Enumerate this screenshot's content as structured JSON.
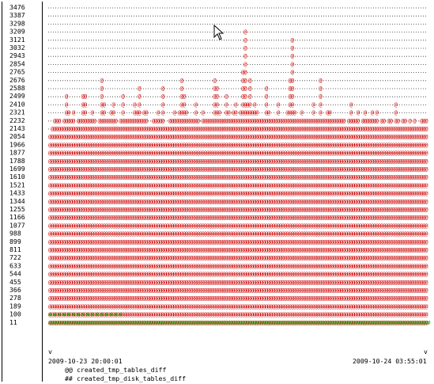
{
  "chart_data": {
    "type": "area",
    "title": "",
    "xlabel": "",
    "ylabel": "",
    "y_ticks": [
      3476,
      3387,
      3298,
      3209,
      3121,
      3032,
      2943,
      2854,
      2765,
      2676,
      2588,
      2499,
      2410,
      2321,
      2232,
      2143,
      2054,
      1966,
      1877,
      1788,
      1699,
      1610,
      1521,
      1433,
      1344,
      1255,
      1166,
      1077,
      988,
      899,
      811,
      722,
      633,
      544,
      455,
      366,
      278,
      189,
      100,
      11
    ],
    "x_start": "2009-10-23 20:00:01",
    "x_end": "2009-10-24 03:55:01",
    "ylim": [
      11,
      3476
    ],
    "series": [
      {
        "name": "created_tmp_tables_diff",
        "glyph": "@@",
        "color": "#cc0000",
        "values": [
          2100,
          2150,
          2250,
          2300,
          2250,
          2150,
          2300,
          2550,
          2350,
          2250,
          2350,
          2200,
          2300,
          2300,
          2500,
          2550,
          2300,
          2250,
          2400,
          2250,
          2150,
          2250,
          2700,
          2450,
          2250,
          2300,
          2350,
          2450,
          2300,
          2150,
          2250,
          2500,
          2250,
          2250,
          2300,
          2250,
          2450,
          2400,
          2650,
          2250,
          2400,
          2350,
          2200,
          2150,
          2300,
          2250,
          2350,
          2250,
          2600,
          2200,
          2150,
          2250,
          2300,
          2400,
          2250,
          2350,
          2700,
          2550,
          2350,
          2250,
          2250,
          2300,
          2450,
          2250,
          2200,
          2350,
          2300,
          2250,
          2250,
          2300,
          2750,
          2600,
          2400,
          2250,
          2300,
          2500,
          2400,
          2300,
          2350,
          2450,
          2300,
          2350,
          2850,
          3250,
          2450,
          2750,
          2400,
          2450,
          2350,
          2250,
          2250,
          2300,
          2650,
          2400,
          2300,
          2250,
          2300,
          2450,
          2250,
          2250,
          2250,
          2350,
          2750,
          3200,
          2350,
          2250,
          2300,
          2350,
          2250,
          2250,
          2250,
          2300,
          2450,
          2250,
          2250,
          2700,
          2300,
          2250,
          2400,
          2350,
          2250,
          2300,
          2250,
          2300,
          2250,
          2250,
          2200,
          2250,
          2450,
          2250,
          2300,
          2350,
          2200,
          2250,
          2400,
          2300,
          2250,
          2350,
          2250,
          2400,
          2150,
          2300,
          2250,
          2200,
          2250,
          2300,
          2200,
          2450,
          2250,
          2200,
          2300,
          2250,
          2150,
          2300,
          2200,
          2250,
          2150,
          2200,
          2250,
          2300,
          2250
        ]
      },
      {
        "name": "created_tmp_disk_tables_diff",
        "glyph": "##",
        "color": "#22a000",
        "values": [
          150,
          30,
          130,
          30,
          130,
          30,
          130,
          30,
          130,
          30,
          130,
          30,
          130,
          30,
          130,
          30,
          130,
          30,
          130,
          30,
          130,
          30,
          130,
          30,
          120,
          30,
          130,
          30,
          130,
          30,
          130,
          20,
          20,
          20,
          20,
          20,
          20,
          20,
          20,
          20,
          20,
          20,
          20,
          20,
          20,
          20,
          20,
          20,
          20,
          20,
          20,
          20,
          20,
          20,
          20,
          20,
          20,
          20,
          20,
          20,
          20,
          20,
          20,
          20,
          20,
          20,
          20,
          20,
          20,
          20,
          20,
          20,
          20,
          20,
          20,
          20,
          20,
          20,
          20,
          20,
          20,
          20,
          20,
          20,
          20,
          20,
          20,
          20,
          20,
          20,
          20,
          20,
          20,
          20,
          20,
          20,
          20,
          20,
          20,
          20,
          20,
          20,
          20,
          20,
          20,
          20,
          20,
          20,
          20,
          20,
          20,
          20,
          20,
          20,
          20,
          20,
          20,
          20,
          20,
          20,
          20,
          20,
          20,
          20,
          20,
          20,
          20,
          20,
          20,
          20,
          20,
          20,
          20,
          20,
          20,
          20,
          20,
          20,
          20,
          20,
          20,
          20,
          20,
          20,
          20,
          20,
          20,
          20,
          20,
          20,
          20,
          20,
          20,
          20,
          20,
          20,
          20,
          20,
          20,
          20,
          20,
          20
        ]
      }
    ],
    "axis_marker": "v",
    "legend_placement": "bottom-left",
    "grid": false
  },
  "legend": [
    {
      "glyph": "@@",
      "label": "created_tmp_tables_diff"
    },
    {
      "glyph": "##",
      "label": "created_tmp_disk_tables_diff"
    }
  ],
  "colors": {
    "primary": "#cc0000",
    "secondary": "#22a000",
    "text": "#000000"
  }
}
